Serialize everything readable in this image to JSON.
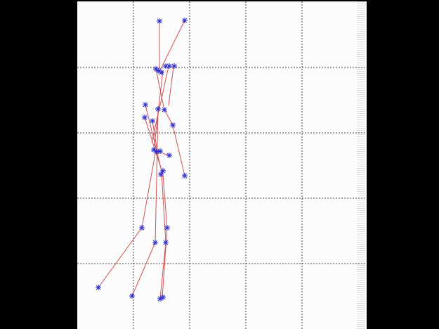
{
  "window": {
    "background": "#000000",
    "panel_background": "#fcfcfc"
  },
  "plot": {
    "grid": true,
    "grid_style": "dotted",
    "grid_color": "#404040",
    "line_color": "#d05050",
    "marker_color": "#2a2ad0",
    "marker_shape": "asterisk",
    "axis_labels_visible": false,
    "tick_labels_visible": false
  }
}
